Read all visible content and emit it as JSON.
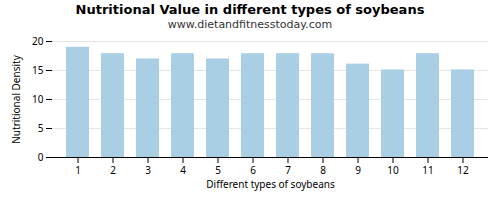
{
  "chart_data": {
    "type": "bar",
    "title": "Nutritional Value in different types of soybeans",
    "subtitle": "www.dietandfitnesstoday.com",
    "xlabel": "Different types of soybeans",
    "ylabel": "Nutritional Density",
    "categories": [
      1,
      2,
      3,
      4,
      5,
      6,
      7,
      8,
      9,
      10,
      11,
      12
    ],
    "values": [
      19.0,
      17.9,
      17.0,
      17.9,
      17.0,
      17.9,
      17.9,
      17.9,
      16.1,
      15.1,
      17.9,
      15.1
    ],
    "color": "#aacfe4",
    "ylim": [
      0,
      20
    ],
    "yticks": [
      0,
      5,
      10,
      15,
      20
    ],
    "grid": true
  }
}
